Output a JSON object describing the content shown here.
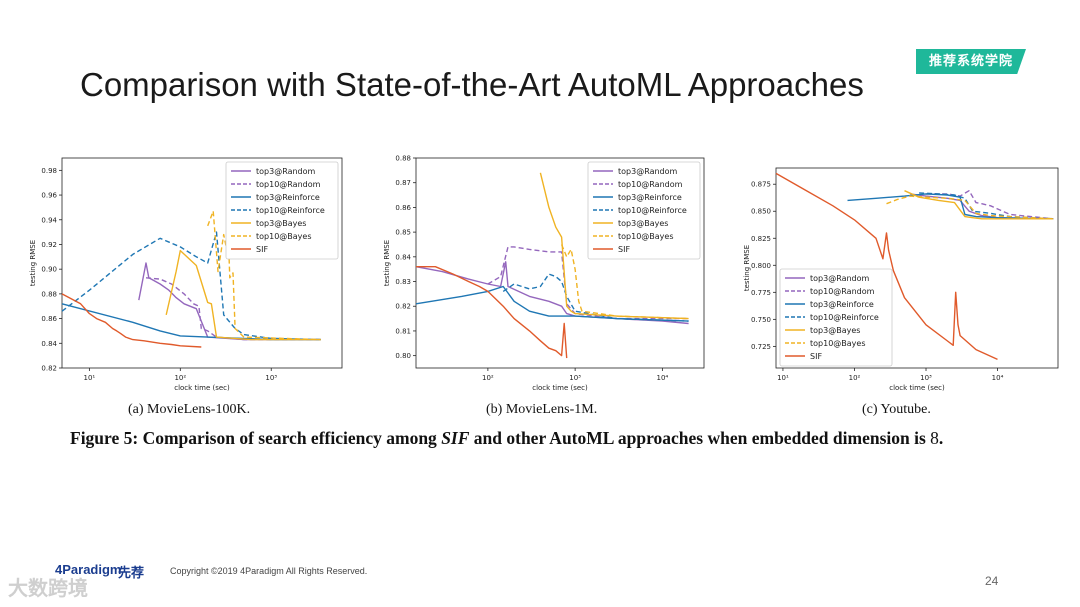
{
  "slide": {
    "title": "Comparison with State-of-the-Art AutoML Approaches",
    "badge": "推荐系统学院",
    "caption_prefix": "Figure 5: Comparison of search efficiency among ",
    "caption_sif": "SIF",
    "caption_mid": " and other AutoML approaches when embedded dimension is ",
    "caption_num": "8",
    "caption_end": ".",
    "footer_logo": "4Paradigm",
    "footer_logo2": "先荐",
    "copyright": "Copyright ©2019 4Paradigm All Rights Reserved.",
    "page_number": "24",
    "watermark": "大数跨境"
  },
  "chart_data": [
    {
      "type": "line",
      "subcaption": "(a)  MovieLens-100K.",
      "xlabel": "clock time (sec)",
      "ylabel": "testing RMSE",
      "xscale": "log",
      "xlim": [
        5,
        6000
      ],
      "ylim": [
        0.82,
        0.99
      ],
      "yticks": [
        0.82,
        0.84,
        0.86,
        0.88,
        0.9,
        0.92,
        0.94,
        0.96,
        0.98
      ],
      "xticks": [
        {
          "v": 10,
          "label": "10¹"
        },
        {
          "v": 100,
          "label": "10²"
        },
        {
          "v": 1000,
          "label": "10³"
        }
      ],
      "legend": "top-right",
      "series": [
        {
          "name": "top3@Random",
          "color": "#9467bd",
          "dash": false,
          "x": [
            35,
            42,
            45,
            60,
            75,
            90,
            110,
            150,
            200,
            500,
            3500
          ],
          "y": [
            0.875,
            0.905,
            0.893,
            0.888,
            0.883,
            0.877,
            0.872,
            0.868,
            0.845,
            0.843,
            0.843
          ]
        },
        {
          "name": "top10@Random",
          "color": "#9467bd",
          "dash": true,
          "x": [
            42,
            60,
            80,
            110,
            140,
            160,
            170,
            200,
            250,
            500,
            3500
          ],
          "y": [
            0.893,
            0.892,
            0.888,
            0.88,
            0.872,
            0.87,
            0.852,
            0.85,
            0.845,
            0.843,
            0.843
          ]
        },
        {
          "name": "top3@Reinforce",
          "color": "#1f77b4",
          "dash": false,
          "x": [
            5,
            30,
            60,
            100,
            200,
            500,
            1000,
            3500
          ],
          "y": [
            0.872,
            0.857,
            0.85,
            0.846,
            0.845,
            0.844,
            0.843,
            0.843
          ]
        },
        {
          "name": "top10@Reinforce",
          "color": "#1f77b4",
          "dash": true,
          "x": [
            5,
            10,
            30,
            60,
            100,
            150,
            200,
            250,
            300,
            400,
            500,
            1000,
            3500
          ],
          "y": [
            0.866,
            0.883,
            0.912,
            0.925,
            0.918,
            0.91,
            0.905,
            0.93,
            0.863,
            0.852,
            0.847,
            0.844,
            0.843
          ]
        },
        {
          "name": "top3@Bayes",
          "color": "#f0b323",
          "dash": false,
          "x": [
            70,
            90,
            100,
            150,
            200,
            220,
            250,
            400,
            600,
            3500
          ],
          "y": [
            0.863,
            0.898,
            0.915,
            0.903,
            0.873,
            0.872,
            0.845,
            0.844,
            0.843,
            0.843
          ]
        },
        {
          "name": "top10@Bayes",
          "color": "#f0b323",
          "dash": true,
          "x": [
            200,
            230,
            260,
            300,
            320,
            340,
            350,
            380,
            400,
            500,
            3500
          ],
          "y": [
            0.935,
            0.947,
            0.898,
            0.928,
            0.918,
            0.92,
            0.893,
            0.897,
            0.852,
            0.845,
            0.843
          ]
        },
        {
          "name": "SIF",
          "color": "#e05a2b",
          "dash": false,
          "x": [
            5,
            8,
            10,
            12,
            15,
            18,
            20,
            22,
            25,
            30,
            40,
            60,
            80,
            100,
            170
          ],
          "y": [
            0.88,
            0.872,
            0.864,
            0.86,
            0.857,
            0.852,
            0.85,
            0.848,
            0.845,
            0.843,
            0.842,
            0.84,
            0.839,
            0.838,
            0.837
          ]
        }
      ]
    },
    {
      "type": "line",
      "subcaption": "(b)  MovieLens-1M.",
      "xlabel": "clock time (sec)",
      "ylabel": "testing RMSE",
      "xscale": "log",
      "xlim": [
        15,
        30000
      ],
      "ylim": [
        0.795,
        0.88
      ],
      "yticks": [
        0.8,
        0.81,
        0.82,
        0.83,
        0.84,
        0.85,
        0.86,
        0.87,
        0.88
      ],
      "xticks": [
        {
          "v": 100,
          "label": "10²"
        },
        {
          "v": 1000,
          "label": "10³"
        },
        {
          "v": 10000,
          "label": "10⁴"
        }
      ],
      "legend": "top-right",
      "series": [
        {
          "name": "top3@Random",
          "color": "#9467bd",
          "dash": false,
          "x": [
            15,
            30,
            60,
            100,
            140,
            160,
            170,
            300,
            500,
            700,
            800,
            1000,
            3000,
            10000,
            20000
          ],
          "y": [
            0.836,
            0.834,
            0.831,
            0.829,
            0.828,
            0.838,
            0.828,
            0.824,
            0.822,
            0.82,
            0.817,
            0.816,
            0.815,
            0.814,
            0.813
          ]
        },
        {
          "name": "top10@Random",
          "color": "#9467bd",
          "dash": true,
          "x": [
            100,
            140,
            170,
            200,
            300,
            500,
            700,
            800,
            1000,
            3000,
            20000
          ],
          "y": [
            0.829,
            0.832,
            0.844,
            0.844,
            0.843,
            0.842,
            0.842,
            0.821,
            0.817,
            0.815,
            0.815
          ]
        },
        {
          "name": "top3@Reinforce",
          "color": "#1f77b4",
          "dash": false,
          "x": [
            15,
            50,
            100,
            150,
            200,
            300,
            500,
            1000,
            3000,
            20000
          ],
          "y": [
            0.821,
            0.824,
            0.826,
            0.828,
            0.822,
            0.818,
            0.816,
            0.816,
            0.815,
            0.814
          ]
        },
        {
          "name": "top10@Reinforce",
          "color": "#1f77b4",
          "dash": true,
          "x": [
            150,
            200,
            300,
            400,
            500,
            600,
            700,
            800,
            1000,
            3000,
            20000
          ],
          "y": [
            0.826,
            0.829,
            0.827,
            0.828,
            0.833,
            0.832,
            0.83,
            0.824,
            0.818,
            0.815,
            0.814
          ]
        },
        {
          "name": "top3@Bayes",
          "color": "#f0b323",
          "dash": false,
          "x": [
            400,
            500,
            600,
            700,
            800,
            900,
            1000,
            3000,
            20000
          ],
          "y": [
            0.874,
            0.86,
            0.852,
            0.848,
            0.82,
            0.818,
            0.817,
            0.816,
            0.815
          ]
        },
        {
          "name": "top10@Bayes",
          "color": "#f0b323",
          "dash": true,
          "x": [
            700,
            800,
            900,
            1000,
            1100,
            1200,
            3000,
            20000
          ],
          "y": [
            0.845,
            0.84,
            0.843,
            0.835,
            0.822,
            0.818,
            0.816,
            0.815
          ]
        },
        {
          "name": "SIF",
          "color": "#e05a2b",
          "dash": false,
          "x": [
            15,
            25,
            40,
            60,
            80,
            100,
            150,
            200,
            300,
            400,
            500,
            600,
            700,
            750,
            800
          ],
          "y": [
            0.836,
            0.836,
            0.833,
            0.83,
            0.828,
            0.826,
            0.82,
            0.815,
            0.81,
            0.806,
            0.803,
            0.802,
            0.8,
            0.813,
            0.799
          ]
        }
      ]
    },
    {
      "type": "line",
      "subcaption": "(c)  Youtube.",
      "xlabel": "clock time (sec)",
      "ylabel": "testing RMSE",
      "xscale": "log",
      "xlim": [
        8,
        70000
      ],
      "ylim": [
        0.705,
        0.89
      ],
      "yticks": [
        0.725,
        0.75,
        0.775,
        0.8,
        0.825,
        0.85,
        0.875
      ],
      "xticks": [
        {
          "v": 10,
          "label": "10¹"
        },
        {
          "v": 100,
          "label": "10²"
        },
        {
          "v": 1000,
          "label": "10³"
        },
        {
          "v": 10000,
          "label": "10⁴"
        }
      ],
      "legend": "bottom-left",
      "series": [
        {
          "name": "top3@Random",
          "color": "#9467bd",
          "dash": false,
          "x": [
            600,
            1000,
            2000,
            3000,
            4000,
            6000,
            10000,
            60000
          ],
          "y": [
            0.866,
            0.864,
            0.862,
            0.86,
            0.85,
            0.846,
            0.844,
            0.843
          ]
        },
        {
          "name": "top10@Random",
          "color": "#9467bd",
          "dash": true,
          "x": [
            1000,
            2000,
            3000,
            4000,
            5000,
            6000,
            8000,
            15000,
            60000
          ],
          "y": [
            0.866,
            0.866,
            0.864,
            0.869,
            0.858,
            0.857,
            0.855,
            0.847,
            0.843
          ]
        },
        {
          "name": "top3@Reinforce",
          "color": "#1f77b4",
          "dash": false,
          "x": [
            80,
            200,
            500,
            1000,
            2000,
            3000,
            3500,
            5000,
            10000,
            60000
          ],
          "y": [
            0.86,
            0.862,
            0.864,
            0.866,
            0.865,
            0.863,
            0.847,
            0.845,
            0.844,
            0.843
          ]
        },
        {
          "name": "top10@Reinforce",
          "color": "#1f77b4",
          "dash": true,
          "x": [
            800,
            1500,
            2500,
            3500,
            4500,
            6000,
            8000,
            15000,
            60000
          ],
          "y": [
            0.867,
            0.866,
            0.865,
            0.862,
            0.85,
            0.849,
            0.848,
            0.845,
            0.843
          ]
        },
        {
          "name": "top3@Bayes",
          "color": "#f0b323",
          "dash": false,
          "x": [
            500,
            800,
            1500,
            2500,
            3500,
            4500,
            6000,
            10000,
            60000
          ],
          "y": [
            0.869,
            0.863,
            0.86,
            0.858,
            0.845,
            0.844,
            0.843,
            0.843,
            0.843
          ]
        },
        {
          "name": "top10@Bayes",
          "color": "#f0b323",
          "dash": true,
          "x": [
            280,
            400,
            600,
            1000,
            2000,
            3500,
            5000,
            8000,
            60000
          ],
          "y": [
            0.857,
            0.861,
            0.864,
            0.863,
            0.862,
            0.86,
            0.848,
            0.846,
            0.843
          ]
        },
        {
          "name": "SIF",
          "color": "#e05a2b",
          "dash": false,
          "x": [
            8,
            20,
            50,
            100,
            200,
            250,
            280,
            300,
            350,
            500,
            1000,
            2000,
            2400,
            2600,
            2800,
            3000,
            5000,
            10000
          ],
          "y": [
            0.885,
            0.87,
            0.855,
            0.842,
            0.825,
            0.806,
            0.83,
            0.814,
            0.795,
            0.77,
            0.745,
            0.73,
            0.726,
            0.775,
            0.745,
            0.735,
            0.722,
            0.713
          ]
        }
      ]
    }
  ]
}
